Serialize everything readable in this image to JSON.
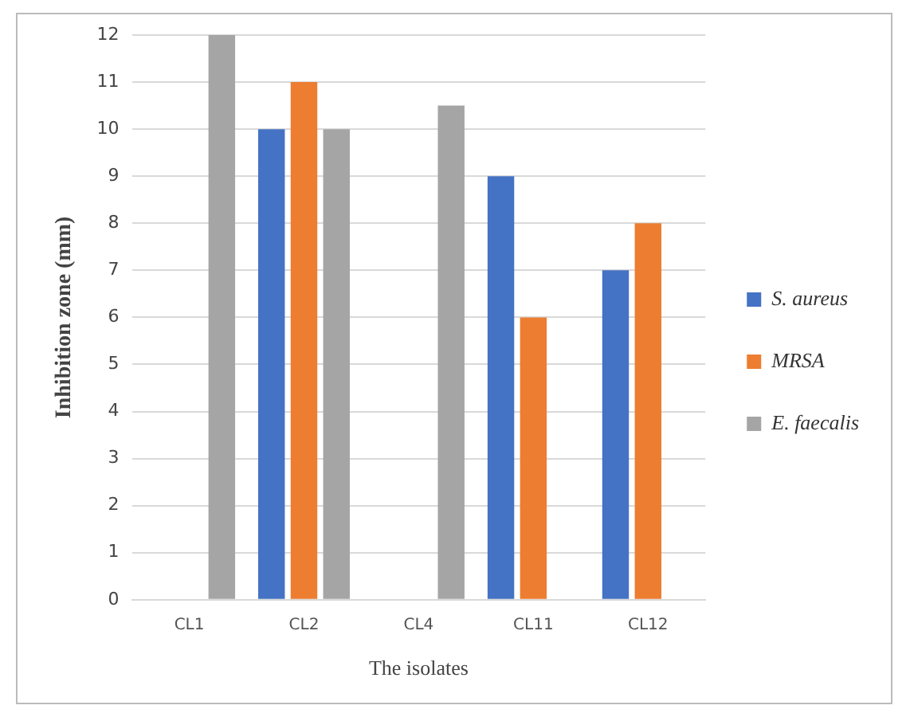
{
  "chart_data": {
    "type": "bar",
    "xlabel": "The isolates",
    "ylabel": "Inhibition zone (mm)",
    "categories": [
      "CL1",
      "CL2",
      "CL4",
      "CL11",
      "CL12"
    ],
    "series": [
      {
        "name": "S. aureus",
        "color": "#4472c4",
        "values": [
          null,
          10,
          null,
          9,
          7
        ]
      },
      {
        "name": "MRSA",
        "color": "#ed7d31",
        "values": [
          null,
          11,
          null,
          6,
          8
        ]
      },
      {
        "name": "E. faecalis",
        "color": "#a5a5a5",
        "values": [
          12,
          10,
          10.5,
          null,
          null
        ]
      }
    ],
    "ylim": [
      0,
      12
    ],
    "yticks": [
      0,
      1,
      2,
      3,
      4,
      5,
      6,
      7,
      8,
      9,
      10,
      11,
      12
    ],
    "grid": "y",
    "legend": "right"
  }
}
